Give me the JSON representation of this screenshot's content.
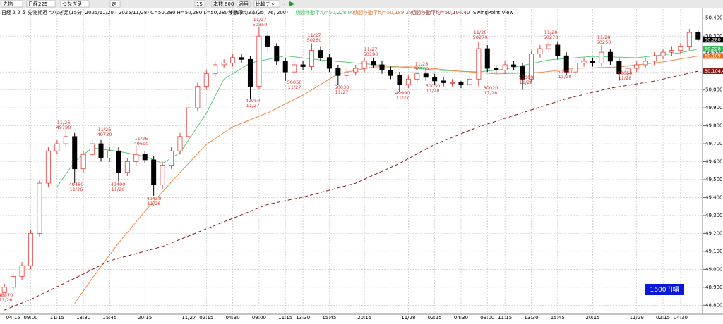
{
  "toolbar": {
    "items": [
      "先物",
      "日経225",
      "つなぎ足",
      "定",
      "15",
      "本数",
      "600",
      "適用",
      "比較チャート"
    ]
  },
  "info": {
    "title": "日経２２５ 先物期近 つなぎ足(15分, 2025/11/20 - 2025/11/28) C=50,280 H=50,280 L=50,280 V=13",
    "ma": "移動平均3本(25, 76, 200)",
    "ma1": "期間移動平均=50,228.00",
    "ma2": "期間移動平均=50,189.29",
    "ma3": "期間移動平均=50,104.40",
    "view": "SwingPoint View"
  },
  "chart_data": {
    "type": "candlestick",
    "up_color": "#e8403c",
    "down_color": "#000000",
    "grid": true,
    "range_note": "1600円幅",
    "categories": [
      null,
      "04:15",
      null,
      "09:00",
      null,
      null,
      "11:15",
      null,
      null,
      "13:30",
      null,
      null,
      "15:45",
      null,
      null,
      null,
      "20:15",
      null,
      null,
      null,
      null,
      "11/27",
      null,
      "02:15",
      null,
      null,
      "04:30",
      null,
      null,
      "09:00",
      null,
      null,
      "11:15",
      null,
      "13:30",
      null,
      null,
      "15:45",
      null,
      null,
      null,
      "20:15",
      null,
      null,
      null,
      null,
      "11/28",
      null,
      null,
      "02:15",
      null,
      null,
      "04:30",
      null,
      null,
      "09:00",
      null,
      "11:15",
      null,
      null,
      "13:30",
      null,
      null,
      "15:45",
      null,
      null,
      null,
      "20:15",
      null,
      null,
      null,
      null,
      "11/29",
      null,
      null,
      "02:15",
      null,
      "04:30",
      null,
      null
    ],
    "open": [
      48870,
      48900,
      48960,
      49020,
      49200,
      49480,
      49660,
      49700,
      49740,
      49560,
      49640,
      49700,
      49620,
      49660,
      49540,
      49600,
      49640,
      49610,
      49470,
      49580,
      49660,
      49740,
      49900,
      50020,
      50090,
      50140,
      50150,
      50180,
      50170,
      50020,
      50300,
      50240,
      50160,
      50100,
      50140,
      50130,
      50220,
      50180,
      50120,
      50080,
      50100,
      50120,
      50160,
      50140,
      50110,
      50080,
      50030,
      50060,
      50090,
      50070,
      50050,
      50040,
      50040,
      50030,
      50060,
      50230,
      50120,
      50110,
      50140,
      50130,
      50060,
      50200,
      50230,
      50250,
      50190,
      50100,
      50150,
      50160,
      50150,
      50210,
      50160,
      50090,
      50120,
      50140,
      50160,
      50190,
      50210,
      50220,
      50240,
      50320
    ],
    "high": [
      48920,
      48980,
      49040,
      49220,
      49500,
      49680,
      49720,
      49790,
      49760,
      49660,
      49730,
      49720,
      49680,
      49680,
      49620,
      49690,
      49660,
      49630,
      49600,
      49680,
      49760,
      49920,
      50040,
      50110,
      50160,
      50170,
      50200,
      50200,
      50190,
      50350,
      50320,
      50260,
      50180,
      50160,
      50160,
      50260,
      50240,
      50200,
      50140,
      50120,
      50140,
      50180,
      50180,
      50160,
      50130,
      50100,
      50080,
      50100,
      50110,
      50090,
      50070,
      50060,
      50050,
      50080,
      50270,
      50250,
      50140,
      50160,
      50160,
      50150,
      50220,
      50250,
      50270,
      50270,
      50210,
      50170,
      50180,
      50180,
      50250,
      50230,
      50180,
      50140,
      50160,
      50180,
      50210,
      50230,
      50240,
      50260,
      50340,
      50330
    ],
    "low": [
      48870,
      48880,
      48940,
      49000,
      49180,
      49460,
      49640,
      49680,
      49480,
      49540,
      49620,
      49600,
      49600,
      49490,
      49520,
      49580,
      49590,
      49410,
      49450,
      49560,
      49640,
      49720,
      49880,
      50000,
      50070,
      50120,
      50130,
      50150,
      49950,
      50000,
      50220,
      50140,
      50050,
      50080,
      50110,
      50110,
      50160,
      50100,
      50030,
      50060,
      50080,
      50100,
      50120,
      50090,
      50060,
      49990,
      50010,
      50040,
      50050,
      50030,
      50020,
      50020,
      50010,
      50010,
      50020,
      50100,
      50090,
      50090,
      50110,
      50000,
      50040,
      50180,
      50210,
      50170,
      50080,
      50080,
      50130,
      50130,
      50130,
      50140,
      50050,
      50070,
      50100,
      50120,
      50140,
      50170,
      50190,
      50200,
      50220,
      50270
    ],
    "close": [
      48900,
      48960,
      49020,
      49200,
      49480,
      49660,
      49700,
      49740,
      49560,
      49640,
      49700,
      49620,
      49660,
      49540,
      49600,
      49640,
      49610,
      49470,
      49580,
      49660,
      49740,
      49900,
      50020,
      50090,
      50140,
      50150,
      50180,
      50170,
      50020,
      50300,
      50240,
      50160,
      50100,
      50140,
      50130,
      50220,
      50180,
      50120,
      50080,
      50100,
      50120,
      50160,
      50140,
      50110,
      50080,
      50030,
      50060,
      50090,
      50070,
      50050,
      50040,
      50040,
      50030,
      50060,
      50230,
      50120,
      50110,
      50140,
      50130,
      50060,
      50200,
      50230,
      50250,
      50190,
      50100,
      50150,
      50160,
      50150,
      50210,
      50160,
      50090,
      50120,
      50140,
      50160,
      50190,
      50210,
      50220,
      50240,
      50320,
      50280
    ],
    "series": [
      {
        "color": "#5cc87a",
        "style": "solid",
        "x": [
          6,
          8,
          10,
          13,
          16,
          18,
          20,
          23,
          25,
          28,
          32,
          36,
          40,
          45,
          50,
          54,
          57,
          62,
          67,
          72,
          77,
          79
        ],
        "values": [
          49460,
          49600,
          49677,
          49657,
          49630,
          49590,
          49650,
          49870,
          50060,
          50150,
          50190,
          50167,
          50150,
          50128,
          50108,
          50100,
          50116,
          50167,
          50187,
          50179,
          50207,
          50228
        ]
      },
      {
        "color": "#f08a4b",
        "style": "solid",
        "x": [
          8,
          10,
          13,
          16,
          20,
          23,
          26,
          30,
          34,
          38,
          42,
          47,
          51,
          56,
          61,
          65,
          70,
          75,
          79
        ],
        "values": [
          48810,
          48950,
          49147,
          49323,
          49540,
          49696,
          49794,
          49873,
          49971,
          50089,
          50128,
          50128,
          50108,
          50089,
          50097,
          50120,
          50128,
          50156,
          50189
        ]
      },
      {
        "color": "#8b1a1a",
        "style": "dashed",
        "x": [
          0,
          3,
          8,
          12,
          18,
          24,
          30,
          34,
          40,
          45,
          49,
          54,
          59,
          64,
          69,
          74,
          79
        ],
        "values": [
          48773,
          48832,
          48950,
          49048,
          49127,
          49245,
          49362,
          49402,
          49480,
          49590,
          49696,
          49794,
          49873,
          49951,
          50010,
          50049,
          50104
        ]
      }
    ],
    "ylim": [
      48750,
      50450
    ],
    "yticks": [
      {
        "value": 48800,
        "label": "48,800"
      },
      {
        "value": 48900,
        "label": "48,900"
      },
      {
        "value": 49000,
        "label": "49,000"
      },
      {
        "value": 49100,
        "label": "49,100"
      },
      {
        "value": 49200,
        "label": "49,200"
      },
      {
        "value": 49300,
        "label": "49,300"
      },
      {
        "value": 49400,
        "label": "49,400"
      },
      {
        "value": 49500,
        "label": "49,500"
      },
      {
        "value": 49600,
        "label": "49,600"
      },
      {
        "value": 49700,
        "label": "49,700"
      },
      {
        "value": 49800,
        "label": "49,800"
      },
      {
        "value": 49900,
        "label": "49,900"
      },
      {
        "value": 50000,
        "label": "50,000"
      },
      {
        "value": 50100,
        "label": "50,100"
      },
      {
        "value": 50200,
        "label": "50,200"
      },
      {
        "value": 50300,
        "label": "50,300"
      },
      {
        "value": 50400,
        "label": "50,400"
      }
    ],
    "price_tags": [
      {
        "value": 50280,
        "label": "50,280",
        "color": "#000000"
      },
      {
        "value": 50228,
        "label": "50,228",
        "color": "#3cb85c"
      },
      {
        "value": 50189,
        "label": "50,189",
        "color": "#e07020"
      },
      {
        "value": 50104.4,
        "label": "50,104.40",
        "color": "#8b1a1a"
      }
    ],
    "annotations": [
      {
        "lines": [
          "48870",
          "11/26"
        ]
      },
      {
        "lines": [
          "11/26",
          "49790"
        ]
      },
      {
        "lines": [
          "49480",
          "11/26"
        ]
      },
      {
        "lines": [
          "11/26",
          "49730"
        ]
      },
      {
        "lines": [
          "49490",
          "11/26"
        ]
      },
      {
        "lines": [
          "11/26",
          "49690"
        ]
      },
      {
        "lines": [
          "49410",
          "11/26"
        ]
      },
      {
        "lines": [
          "11/27",
          "50350"
        ]
      },
      {
        "lines": [
          "49950",
          "11/27"
        ]
      },
      {
        "lines": [
          "50050",
          "11/27"
        ]
      },
      {
        "lines": [
          "11/27",
          "50260"
        ]
      },
      {
        "lines": [
          "50030",
          "11/27"
        ]
      },
      {
        "lines": [
          "11/27",
          "50180"
        ]
      },
      {
        "lines": [
          "49990",
          "11/27"
        ]
      },
      {
        "lines": [
          "11/28",
          "50100"
        ]
      },
      {
        "lines": [
          "50030",
          "11/28"
        ]
      },
      {
        "lines": [
          "11/28",
          "50270"
        ]
      },
      {
        "lines": [
          "50020",
          "11/28"
        ]
      },
      {
        "lines": [
          "50000",
          "11/28"
        ]
      },
      {
        "lines": [
          "11/28",
          "50270"
        ]
      },
      {
        "lines": [
          "50100",
          "11/28"
        ]
      },
      {
        "lines": [
          "11/28",
          "50250"
        ]
      },
      {
        "lines": [
          "50050",
          "11/28"
        ]
      }
    ]
  }
}
